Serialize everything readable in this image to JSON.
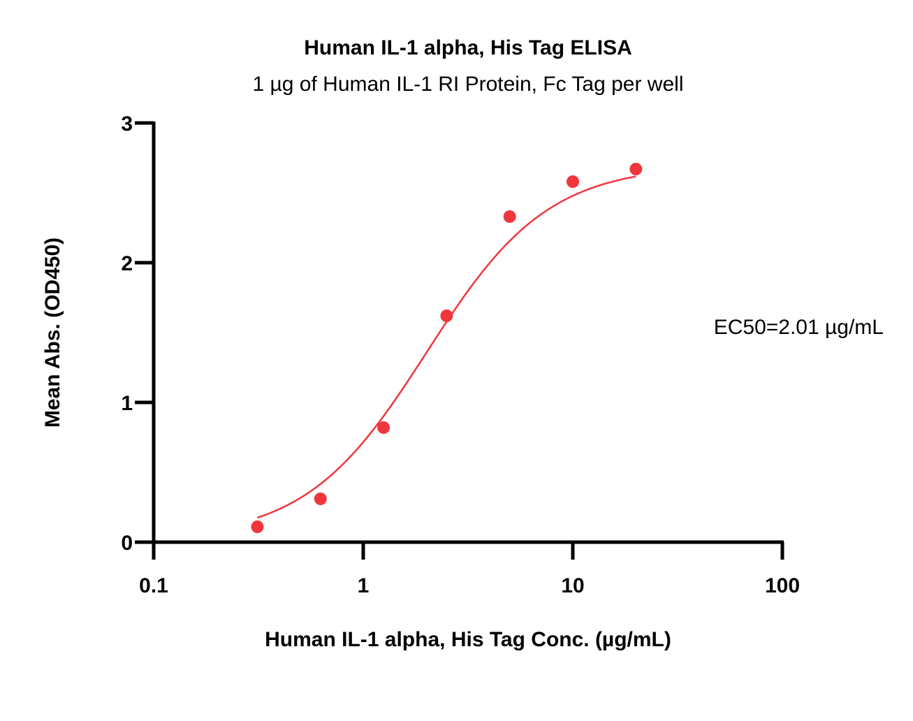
{
  "chart_data": {
    "type": "scatter",
    "title": "Human IL-1 alpha, His Tag ELISA",
    "subtitle": "1 µg of Human IL-1 RI Protein, Fc Tag per well",
    "xlabel": "Human IL-1 alpha, His Tag Conc. (µg/mL)",
    "ylabel": "Mean Abs. (OD450)",
    "x_scale": "log",
    "xlim": [
      0.1,
      100
    ],
    "ylim": [
      0,
      3
    ],
    "x_ticks": [
      0.1,
      1,
      10,
      100
    ],
    "x_tick_labels": [
      "0.1",
      "1",
      "10",
      "100"
    ],
    "y_ticks": [
      0,
      1,
      2,
      3
    ],
    "y_tick_labels": [
      "0",
      "1",
      "2",
      "3"
    ],
    "grid": false,
    "series": [
      {
        "x": [
          0.3125,
          0.625,
          1.25,
          2.5,
          5,
          10,
          20
        ],
        "y": [
          0.11,
          0.31,
          0.82,
          1.62,
          2.33,
          2.58,
          2.67
        ],
        "color": "#f0363d"
      }
    ],
    "fit_curve": {
      "model": "4PL",
      "bottom": 0.02,
      "top": 2.7,
      "ec50": 2.01,
      "hill": 1.5,
      "x_range": [
        0.3125,
        20
      ],
      "color": "#f0363d"
    },
    "annotation": "EC50=2.01 µg/mL"
  }
}
